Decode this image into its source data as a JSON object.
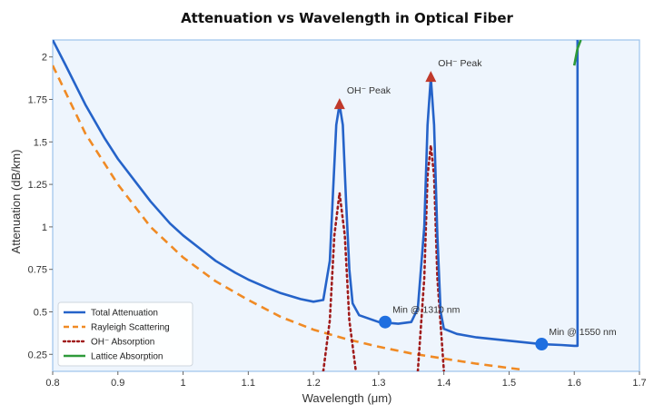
{
  "chart_data": {
    "type": "line",
    "title": "Attenuation vs Wavelength in Optical Fiber",
    "xlabel": "Wavelength (μm)",
    "ylabel": "Attenuation (dB/km)",
    "xlim": [
      0.8,
      1.7
    ],
    "ylim": [
      0.15,
      2.1
    ],
    "xticks": [
      0.8,
      0.9,
      1.0,
      1.1,
      1.2,
      1.3,
      1.4,
      1.5,
      1.6,
      1.7
    ],
    "xtick_labels": [
      "0.8",
      "0.9",
      "1",
      "1.1",
      "1.2",
      "1.3",
      "1.4",
      "1.5",
      "1.6",
      "1.7"
    ],
    "yticks": [
      0.25,
      0.5,
      0.75,
      1.0,
      1.25,
      1.5,
      1.75,
      2.0
    ],
    "ytick_labels": [
      "0.25",
      "0.5",
      "0.75",
      "1",
      "1.25",
      "1.5",
      "1.75",
      "2"
    ],
    "grid": false,
    "legend_position": "bottom-left",
    "series": [
      {
        "name": "Total Attenuation",
        "style": "solid",
        "color": "#2563c9",
        "x": [
          0.8,
          0.82,
          0.85,
          0.88,
          0.9,
          0.93,
          0.95,
          0.98,
          1.0,
          1.03,
          1.05,
          1.08,
          1.1,
          1.13,
          1.15,
          1.18,
          1.2,
          1.215,
          1.225,
          1.23,
          1.235,
          1.24,
          1.245,
          1.25,
          1.255,
          1.26,
          1.27,
          1.3,
          1.33,
          1.35,
          1.36,
          1.37,
          1.375,
          1.38,
          1.385,
          1.39,
          1.395,
          1.4,
          1.42,
          1.45,
          1.5,
          1.55,
          1.58,
          1.6,
          1.605,
          1.605
        ],
        "y": [
          2.1,
          1.95,
          1.72,
          1.52,
          1.4,
          1.25,
          1.15,
          1.02,
          0.95,
          0.86,
          0.8,
          0.73,
          0.69,
          0.64,
          0.61,
          0.575,
          0.56,
          0.57,
          0.8,
          1.2,
          1.6,
          1.72,
          1.6,
          1.15,
          0.75,
          0.55,
          0.48,
          0.44,
          0.43,
          0.44,
          0.52,
          1.0,
          1.6,
          1.88,
          1.6,
          0.95,
          0.5,
          0.4,
          0.37,
          0.35,
          0.33,
          0.31,
          0.305,
          0.3,
          0.3,
          2.1
        ]
      },
      {
        "name": "Rayleigh Scattering",
        "style": "dashed",
        "color": "#f08a24",
        "x": [
          0.8,
          0.85,
          0.9,
          0.95,
          1.0,
          1.05,
          1.1,
          1.15,
          1.2,
          1.25,
          1.3,
          1.35,
          1.4,
          1.45,
          1.5,
          1.52
        ],
        "y": [
          1.95,
          1.55,
          1.25,
          1.0,
          0.82,
          0.68,
          0.57,
          0.47,
          0.395,
          0.34,
          0.295,
          0.255,
          0.225,
          0.195,
          0.17,
          0.16
        ]
      },
      {
        "name": "OH⁻ Absorption",
        "style": "dotted",
        "color": "#a01c1c",
        "segments": [
          {
            "x": [
              1.215,
              1.225,
              1.232,
              1.24,
              1.248,
              1.255,
              1.265
            ],
            "y": [
              0.15,
              0.45,
              0.95,
              1.2,
              0.95,
              0.45,
              0.15
            ]
          },
          {
            "x": [
              1.36,
              1.37,
              1.375,
              1.38,
              1.385,
              1.39,
              1.4
            ],
            "y": [
              0.15,
              0.7,
              1.3,
              1.48,
              1.3,
              0.7,
              0.15
            ]
          }
        ]
      },
      {
        "name": "Lattice Absorption",
        "style": "solid",
        "color": "#2e9a3a",
        "x": [
          1.6,
          1.605,
          1.61
        ],
        "y": [
          1.95,
          2.05,
          2.1
        ]
      }
    ],
    "markers": [
      {
        "type": "peak",
        "x": 1.24,
        "y": 1.72,
        "label": "OH⁻ Peak",
        "color": "#c0392b"
      },
      {
        "type": "peak",
        "x": 1.38,
        "y": 1.88,
        "label": "OH⁻ Peak",
        "color": "#c0392b"
      },
      {
        "type": "min",
        "x": 1.31,
        "y": 0.44,
        "label": "Min @ 1310 nm",
        "color": "#1f6fe0"
      },
      {
        "type": "min",
        "x": 1.55,
        "y": 0.31,
        "label": "Min @ 1550 nm",
        "color": "#1f6fe0"
      }
    ],
    "colors": {
      "plot_background": "#eef5fd",
      "plot_border": "#9cc3ec"
    }
  }
}
